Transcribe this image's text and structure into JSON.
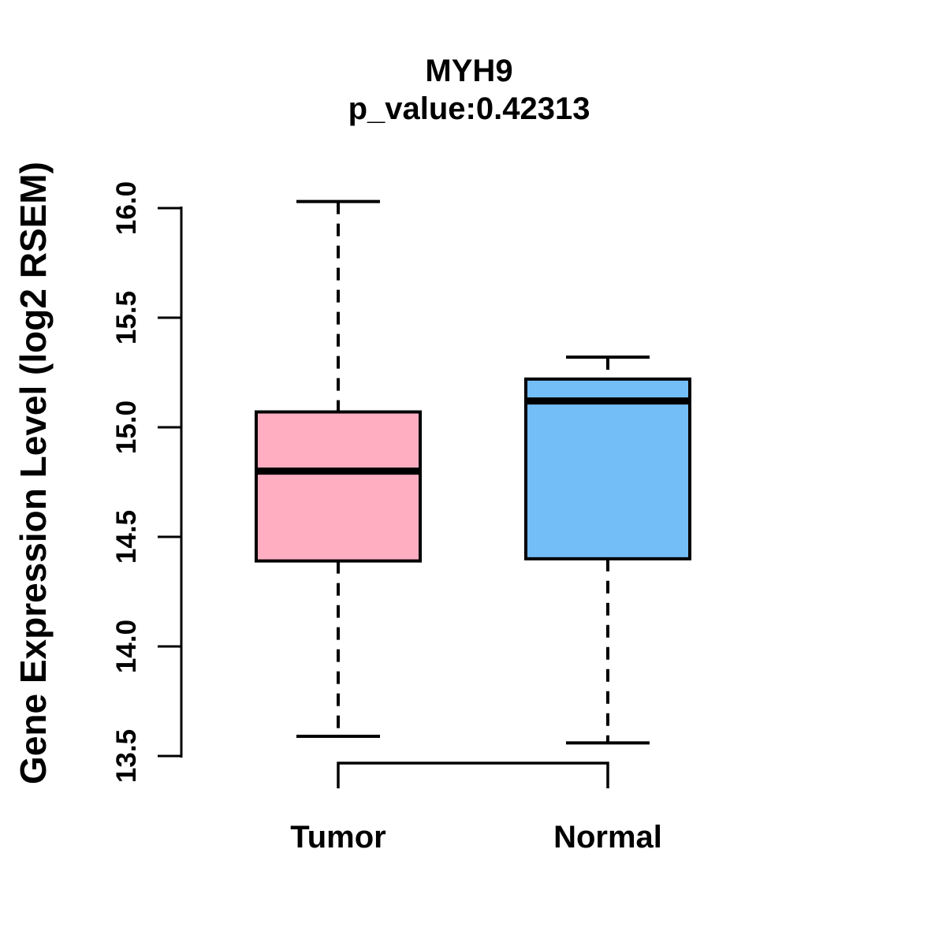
{
  "chart_data": {
    "type": "boxplot",
    "title": "MYH9",
    "subtitle": "p_value:0.42313",
    "p_value": 0.42313,
    "ylabel": "Gene Expression Level (log2 RSEM)",
    "xlabel": "",
    "categories": [
      "Tumor",
      "Normal"
    ],
    "yticks": [
      "16.0",
      "15.5",
      "15.0",
      "14.5",
      "14.0",
      "13.5"
    ],
    "ylim": [
      13.5,
      16.0
    ],
    "grid": false,
    "legend": "none",
    "series": [
      {
        "name": "Tumor",
        "min": 13.59,
        "q1": 14.39,
        "median": 14.8,
        "q3": 15.07,
        "max": 16.03,
        "fill_color": "#FFAEC2"
      },
      {
        "name": "Normal",
        "min": 13.56,
        "q1": 14.4,
        "median": 15.12,
        "q3": 15.22,
        "max": 15.32,
        "fill_color": "#74BEF8"
      }
    ],
    "comparison_bracket": {
      "between": [
        "Tumor",
        "Normal"
      ]
    },
    "line_color": "#000000",
    "background_color": "#FFFFFF"
  }
}
